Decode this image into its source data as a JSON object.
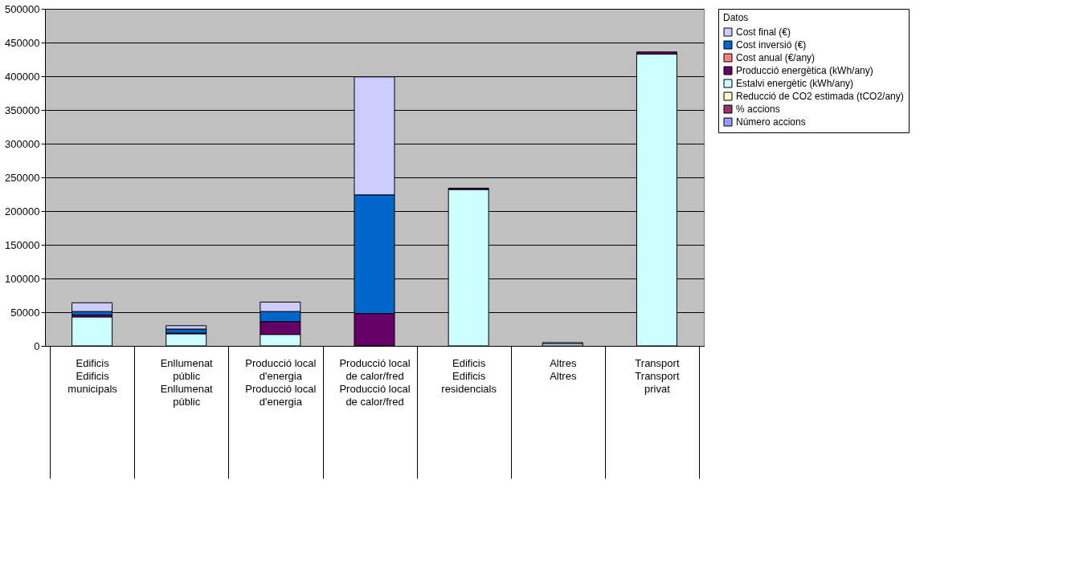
{
  "chart_data": {
    "type": "bar",
    "stacked": true,
    "categories": [
      "Edificis municipals",
      "Enllumenat públic",
      "Producció local d'energia",
      "Producció local de calor/fred",
      "Edificis residencials",
      "Altres",
      "Transport privat"
    ],
    "annotations": [
      "Edificis",
      "Enllumenat públic",
      "Producció local d'energia",
      "Producció local de calor/fred",
      "Edificis",
      "Altres",
      "Transport"
    ],
    "series": [
      {
        "name": "Número accions",
        "color": "#9999ff",
        "values": [
          null,
          null,
          null,
          null,
          null,
          null,
          null
        ]
      },
      {
        "name": "% accions",
        "color": "#993366",
        "values": [
          null,
          null,
          null,
          null,
          null,
          null,
          null
        ]
      },
      {
        "name": "Reducció de CO2 estimada (tCO2/any)",
        "color": "#ffffcc",
        "values": [
          null,
          null,
          null,
          null,
          null,
          null,
          null
        ]
      },
      {
        "name": "Estalvi energètic (kWh/any)",
        "color": "#ccffff",
        "values": [
          43000,
          18000,
          17000,
          null,
          232000,
          3000,
          433000
        ]
      },
      {
        "name": "Producció energètica (kWh/any)",
        "color": "#660066",
        "values": [
          3000,
          1000,
          19000,
          48000,
          2000,
          null,
          3000
        ]
      },
      {
        "name": "Cost anual (€/any)",
        "color": "#ff8080",
        "values": [
          null,
          null,
          null,
          null,
          null,
          null,
          null
        ]
      },
      {
        "name": "Cost inversió (€)",
        "color": "#0066cc",
        "values": [
          5000,
          6000,
          15000,
          176000,
          null,
          null,
          null
        ]
      },
      {
        "name": "Cost final (€)",
        "color": "#ccccff",
        "values": [
          13000,
          5000,
          14000,
          175000,
          null,
          2000,
          null
        ]
      }
    ],
    "ylim": [
      0,
      500000
    ],
    "yticks": [
      0,
      50000,
      100000,
      150000,
      200000,
      250000,
      300000,
      350000,
      400000,
      450000,
      500000
    ],
    "grid": "y",
    "legend": "right",
    "legend_title": "Datos"
  }
}
